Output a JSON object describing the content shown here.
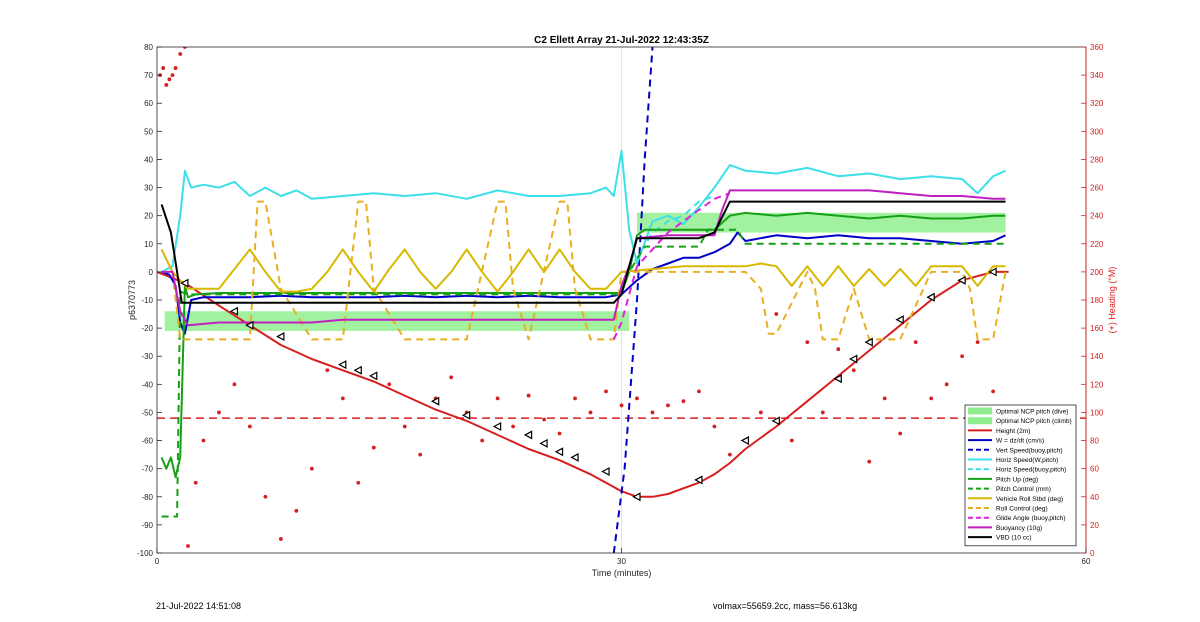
{
  "chart_data": {
    "type": "line",
    "title": "C2 Ellett Array 21-Jul-2022 12:43:35Z",
    "xlabel": "Time (minutes)",
    "ylabel_left": "p6370773",
    "ylabel_right": "(+) Heading (°M)",
    "xlim": [
      0,
      60
    ],
    "ylim_left": [
      -100,
      80
    ],
    "ylim_right": [
      0,
      360
    ],
    "x_ticks": [
      0,
      30,
      60
    ],
    "y_ticks_left": [
      -100,
      -90,
      -80,
      -70,
      -60,
      -50,
      -40,
      -30,
      -20,
      -10,
      0,
      10,
      20,
      30,
      40,
      50,
      60,
      70,
      80
    ],
    "y_ticks_right": [
      0,
      20,
      40,
      60,
      80,
      100,
      120,
      140,
      160,
      180,
      200,
      220,
      240,
      260,
      280,
      300,
      320,
      340,
      360
    ],
    "grid": "x-only",
    "legend_location": "bottom-right",
    "bands": [
      {
        "name": "Optimal NCP pitch (dive)",
        "x": [
          0.5,
          30.5
        ],
        "y": [
          -21,
          -14
        ],
        "color": "#90ee90"
      },
      {
        "name": "Optimal NCP pitch (climb)",
        "x": [
          31.0,
          54.8
        ],
        "y": [
          14,
          21
        ],
        "color": "#90ee90"
      }
    ],
    "series": [
      {
        "name": "Height (2m)",
        "color": "#d62020",
        "style": "solid",
        "axis": "left",
        "x": [
          0.0,
          1.8,
          4.0,
          6.0,
          8.0,
          10.0,
          12.0,
          14.0,
          16.0,
          18.0,
          20.0,
          22.0,
          24.0,
          26.0,
          28.0,
          29.0,
          30.0,
          31.0,
          32.0,
          33.0,
          34.0,
          35.0,
          36.0,
          37.0,
          38.0,
          40.0,
          42.0,
          44.0,
          46.0,
          48.0,
          50.0,
          52.0,
          54.0,
          55.0
        ],
        "y": [
          0,
          -4,
          -12,
          -19,
          -26,
          -31,
          -35,
          -39,
          -44,
          -49,
          -53,
          -58,
          -63,
          -67,
          -72,
          -75,
          -78,
          -80,
          -80,
          -79,
          -77,
          -75,
          -72,
          -68,
          -63,
          -55,
          -46,
          -37,
          -28,
          -19,
          -10,
          -3,
          0,
          0
        ]
      },
      {
        "name": "W = dz/dt (cm/s)",
        "color": "#0000c8",
        "style": "solid",
        "axis": "left",
        "x": [
          0.3,
          0.8,
          1.2,
          1.5,
          1.8,
          2.2,
          3.0,
          4.0,
          6.0,
          8.0,
          10.0,
          12.0,
          14.0,
          16.0,
          18.0,
          20.0,
          22.0,
          24.0,
          26.0,
          28.0,
          29.0,
          30.0,
          31.0,
          32.0,
          33.0,
          34.0,
          35.0,
          36.0,
          37.0,
          37.5,
          38.0,
          40.0,
          42.0,
          44.0,
          46.0,
          48.0,
          50.0,
          52.0,
          54.0,
          54.8
        ],
        "y": [
          0,
          -1,
          -5,
          -18,
          -22,
          -10,
          -9,
          -9,
          -9,
          -8.5,
          -9,
          -9,
          -9,
          -8.5,
          -9,
          -8.5,
          -9,
          -8.5,
          -9,
          -9,
          -9,
          -8,
          -3,
          1,
          3,
          5,
          5,
          7,
          10,
          14,
          11,
          13,
          12,
          13,
          12,
          12,
          11,
          10,
          11,
          13
        ]
      },
      {
        "name": "Vert Speed(buoy,pitch)",
        "color": "#0000c8",
        "style": "dash",
        "axis": "left",
        "x": [
          29.5,
          30.2,
          31.0,
          31.5,
          32.0
        ],
        "y": [
          -100,
          -70,
          -10,
          40,
          80
        ]
      },
      {
        "name": "Horiz Speed(W,pitch)",
        "color": "#3de0e8",
        "style": "solid",
        "axis": "left",
        "x": [
          0.3,
          1.0,
          1.5,
          1.8,
          2.2,
          3.0,
          4.0,
          5.0,
          6.0,
          7.0,
          8.0,
          9.0,
          10.0,
          12.0,
          14.0,
          16.0,
          18.0,
          20.0,
          22.0,
          24.0,
          26.0,
          28.0,
          29.0,
          29.5,
          30.0,
          30.5,
          31.0,
          32.0,
          33.0,
          34.0,
          35.0,
          36.0,
          37.0,
          38.0,
          40.0,
          42.0,
          44.0,
          46.0,
          48.0,
          50.0,
          52.0,
          53.0,
          54.0,
          54.8
        ],
        "y": [
          0,
          2,
          20,
          36,
          30,
          31,
          30,
          32,
          27,
          30,
          27,
          29,
          26,
          27,
          28,
          27,
          28,
          26,
          29,
          27,
          27,
          28,
          30,
          27,
          43,
          15,
          3,
          18,
          20,
          17,
          23,
          30,
          38,
          36,
          35,
          37,
          34,
          35,
          33,
          34,
          33,
          28,
          34,
          36
        ]
      },
      {
        "name": "Horiz Speed(buoy,pitch)",
        "color": "#3de0e8",
        "style": "dash",
        "axis": "left",
        "x": [
          30.5,
          31.0,
          32.0,
          33.0,
          34.0,
          35.0,
          36.0
        ],
        "y": [
          0,
          5,
          14,
          18,
          20,
          25,
          27
        ]
      },
      {
        "name": "Pitch Up (deg)",
        "color": "#16a016",
        "style": "solid",
        "axis": "left",
        "x": [
          0.3,
          0.6,
          0.9,
          1.2,
          1.5,
          1.8,
          2.0,
          2.5,
          4.0,
          6.0,
          8.0,
          10.0,
          12.0,
          14.0,
          16.0,
          18.0,
          20.0,
          22.0,
          24.0,
          26.0,
          28.0,
          30.0,
          30.5,
          31.0,
          31.5,
          33.0,
          35.0,
          36.0,
          37.0,
          38.0,
          40.0,
          42.0,
          44.0,
          46.0,
          48.0,
          50.0,
          52.0,
          54.0,
          54.8
        ],
        "y": [
          -66,
          -70,
          -66,
          -73,
          -66,
          -5,
          -9,
          -8,
          -7.5,
          -7.5,
          -7.5,
          -7.5,
          -7.5,
          -7.5,
          -7.5,
          -7.5,
          -7.5,
          -7.5,
          -7.5,
          -7.5,
          -7.5,
          -7.5,
          0,
          13,
          15,
          15,
          15,
          15,
          20,
          21,
          20,
          21,
          20,
          19,
          20,
          19,
          19,
          20,
          20
        ]
      },
      {
        "name": "Pitch Control (mm)",
        "color": "#16a016",
        "style": "dash",
        "axis": "left",
        "x": [
          0.3,
          1.3,
          1.5,
          2.0,
          4.0,
          8.0,
          12.0,
          16.0,
          20.0,
          24.0,
          28.0,
          29.8,
          30.5,
          31.5,
          35.0,
          35.6,
          37.5,
          38.0,
          54.8
        ],
        "y": [
          -87,
          -87,
          -7,
          -8,
          -8,
          -8,
          -8,
          -8,
          -8,
          -8,
          -8,
          -8,
          0,
          9,
          9,
          15,
          15,
          10,
          10
        ]
      },
      {
        "name": "Vehicle Roll Stbd (deg)",
        "color": "#d8b800",
        "style": "solid",
        "axis": "left",
        "x": [
          0.3,
          1.0,
          2.0,
          4.0,
          5.0,
          6.0,
          7.0,
          8.0,
          9.0,
          10.0,
          11.0,
          12.0,
          13.0,
          14.0,
          15.0,
          16.0,
          17.0,
          18.0,
          19.0,
          20.0,
          21.0,
          22.0,
          23.0,
          24.0,
          25.0,
          26.0,
          27.0,
          28.0,
          29.0,
          30.0,
          32.0,
          34.0,
          36.0,
          38.0,
          39.0,
          40.0,
          41.0,
          42.0,
          43.0,
          44.0,
          45.0,
          46.0,
          47.0,
          48.0,
          49.0,
          50.0,
          51.0,
          52.0,
          53.0,
          54.0,
          54.8
        ],
        "y": [
          8,
          0,
          -6,
          -6,
          1,
          8,
          0,
          -7,
          -7,
          -6,
          0,
          8,
          0,
          -7,
          1,
          8,
          0,
          -6,
          0,
          8,
          0,
          -7,
          0,
          8,
          0,
          8,
          0,
          -6,
          -6,
          0,
          1,
          2,
          2,
          2,
          3,
          2,
          -5,
          2,
          -5,
          2,
          -5,
          1,
          -5,
          1,
          -5,
          2,
          2,
          2,
          -5,
          2,
          2
        ]
      },
      {
        "name": "Roll Control (deg)",
        "color": "#e8b020",
        "style": "dash",
        "axis": "left",
        "x": [
          0.3,
          1.0,
          1.5,
          2.0,
          4.0,
          6.0,
          6.5,
          7.0,
          8.0,
          10.0,
          12.0,
          13.0,
          13.5,
          14.0,
          16.0,
          18.0,
          20.0,
          22.0,
          22.5,
          23.0,
          24.0,
          26.0,
          26.5,
          27.0,
          28.0,
          29.0,
          29.5,
          30.0,
          31.0,
          36.0,
          38.0,
          39.0,
          39.5,
          40.0,
          42.0,
          42.5,
          43.0,
          44.0,
          45.0,
          46.0,
          48.0,
          50.0,
          52.0,
          52.5,
          53.0,
          54.0,
          54.8
        ],
        "y": [
          8,
          0,
          -24,
          -24,
          -24,
          -24,
          25,
          25,
          -6,
          -24,
          -24,
          25,
          25,
          -6,
          -24,
          -24,
          -24,
          25,
          25,
          -6,
          -24,
          25,
          25,
          -6,
          -24,
          -24,
          -24,
          0,
          0,
          0,
          0,
          -6,
          -22,
          -22,
          0,
          -6,
          -24,
          -24,
          -6,
          -24,
          -24,
          0,
          0,
          -6,
          -24,
          -24,
          0
        ]
      },
      {
        "name": "Glide Angle (buoy,pitch)",
        "color": "#e020e0",
        "style": "dash",
        "axis": "left",
        "x": [
          29.5,
          30.0,
          30.5,
          31.0,
          32.0,
          33.0,
          34.0,
          35.0,
          36.0,
          37.0
        ],
        "y": [
          -24,
          -18,
          -8,
          2,
          8,
          14,
          18,
          22,
          26,
          28
        ]
      },
      {
        "name": "Buoyancy (10g)",
        "color": "#c020c0",
        "style": "solid",
        "axis": "left",
        "x": [
          0.3,
          1.0,
          1.5,
          2.0,
          4.0,
          6.0,
          8.0,
          10.0,
          12.0,
          14.0,
          16.0,
          18.0,
          20.0,
          22.0,
          24.0,
          26.0,
          28.0,
          29.5,
          30.0,
          30.5,
          31.0,
          33.0,
          35.0,
          36.0,
          36.5,
          37.0,
          38.0,
          40.0,
          42.0,
          44.0,
          46.0,
          48.0,
          50.0,
          52.0,
          54.0,
          54.8
        ],
        "y": [
          0,
          0,
          -14,
          -19,
          -18,
          -18,
          -18,
          -18,
          -17,
          -17,
          -17,
          -17,
          -17,
          -17,
          -17,
          -17,
          -17,
          -17,
          -5,
          2,
          12,
          13,
          13,
          13,
          22,
          29,
          29,
          29,
          29,
          29,
          29,
          28,
          27,
          27,
          26,
          26
        ]
      },
      {
        "name": "VBD (10 cc)",
        "color": "#000000",
        "style": "solid",
        "axis": "left",
        "x": [
          0.3,
          0.9,
          1.3,
          1.6,
          2.0,
          4.0,
          8.0,
          12.0,
          16.0,
          20.0,
          24.0,
          28.0,
          29.5,
          30.0,
          30.5,
          31.0,
          33.0,
          35.0,
          36.0,
          37.0,
          38.0,
          39.0,
          44.0,
          50.0,
          54.8
        ],
        "y": [
          24,
          14,
          0,
          -11,
          -11,
          -11,
          -11,
          -11,
          -11,
          -11,
          -11,
          -11,
          -11,
          -8,
          2,
          12,
          12,
          12,
          14,
          25,
          25,
          25,
          25,
          25,
          25
        ]
      }
    ],
    "reference_line": {
      "y": -52,
      "color": "#d62020",
      "style": "dash",
      "axis": "left"
    },
    "heading_points": {
      "color": "#d62020",
      "axis": "right",
      "x": [
        0.2,
        0.4,
        0.6,
        0.8,
        1.0,
        1.2,
        1.5,
        1.8,
        2.0,
        2.5,
        3.0,
        4.0,
        5.0,
        6.0,
        7.0,
        8.0,
        9.0,
        10.0,
        11.0,
        12.0,
        13.0,
        14.0,
        15.0,
        16.0,
        17.0,
        18.0,
        19.0,
        20.0,
        21.0,
        22.0,
        23.0,
        24.0,
        25.0,
        26.0,
        27.0,
        28.0,
        29.0,
        30.0,
        31.0,
        32.0,
        33.0,
        34.0,
        35.0,
        36.0,
        37.0,
        38.0,
        39.0,
        40.0,
        41.0,
        42.0,
        43.0,
        44.0,
        45.0,
        46.0,
        47.0,
        48.0,
        49.0,
        50.0,
        51.0,
        52.0,
        53.0,
        54.0
      ],
      "y": [
        340,
        345,
        333,
        337,
        340,
        345,
        355,
        360,
        5,
        50,
        80,
        100,
        120,
        90,
        40,
        10,
        30,
        60,
        130,
        110,
        50,
        75,
        120,
        90,
        70,
        110,
        125,
        100,
        80,
        110,
        90,
        112,
        95,
        85,
        110,
        100,
        115,
        105,
        110,
        100,
        105,
        108,
        115,
        90,
        70,
        80,
        100,
        170,
        80,
        150,
        100,
        145,
        130,
        65,
        110,
        85,
        150,
        110,
        120,
        140,
        150,
        115
      ]
    },
    "waypoint_markers": {
      "color": "#000000",
      "axis": "left",
      "x": [
        1.8,
        5.0,
        6.0,
        8.0,
        12.0,
        13.0,
        14.0,
        18.0,
        20.0,
        22.0,
        24.0,
        25.0,
        26.0,
        27.0,
        29.0,
        31.0,
        35.0,
        38.0,
        40.0,
        44.0,
        45.0,
        46.0,
        48.0,
        50.0,
        52.0,
        54.0
      ],
      "y": [
        -4,
        -14,
        -19,
        -23,
        -33,
        -35,
        -37,
        -46,
        -51,
        -55,
        -58,
        -61,
        -64,
        -66,
        -71,
        -80,
        -74,
        -60,
        -53,
        -38,
        -31,
        -25,
        -17,
        -9,
        -3,
        0
      ]
    }
  },
  "footer": {
    "date": "21-Jul-2022 14:51:08",
    "info": "volmax=55659.2cc, mass=56.613kg"
  }
}
